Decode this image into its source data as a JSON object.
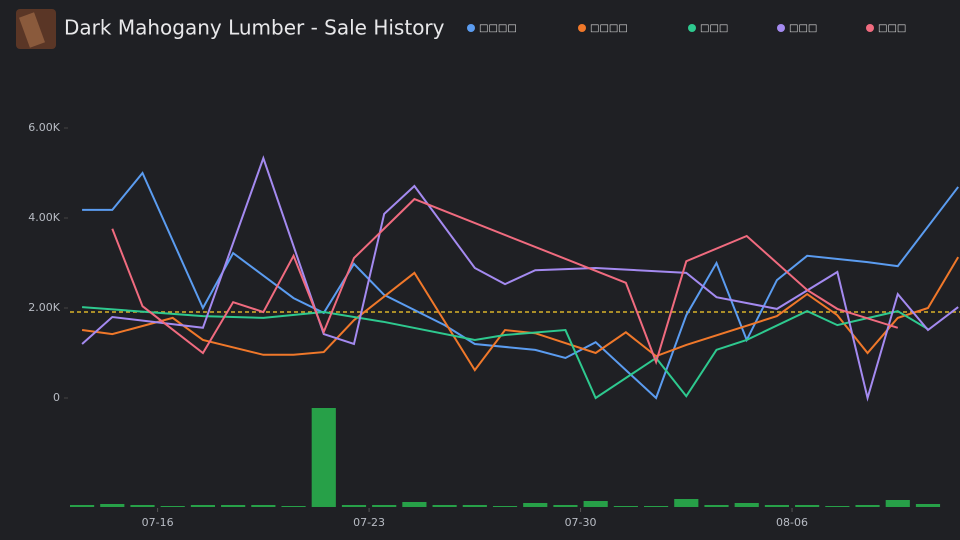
{
  "chart_data": [
    {
      "type": "line",
      "title": "Dark Mahogany Lumber - Sale History",
      "xlim": [
        -2.9,
        26.56
      ],
      "xticks": [
        {
          "value": 0,
          "label": "07-16"
        },
        {
          "value": 7,
          "label": "07-23"
        },
        {
          "value": 14,
          "label": "07-30"
        },
        {
          "value": 21,
          "label": "08-06"
        }
      ],
      "ylim": [
        0,
        6600
      ],
      "yticks": [
        {
          "value": 0,
          "label": "0"
        },
        {
          "value": 2000,
          "label": "2.00K"
        },
        {
          "value": 4000,
          "label": "4.00K"
        },
        {
          "value": 6000,
          "label": "6.00K"
        }
      ],
      "reference_line": 1910,
      "reference_color": "#d9b22a",
      "series": [
        {
          "name": "□□□□",
          "color": "#5b9cf0",
          "x": [
            -2.5,
            -1.5,
            -0.5,
            1.5,
            2.5,
            4.5,
            5.5,
            6.5,
            7.5,
            9.5,
            10.5,
            12.5,
            13.5,
            14.5,
            16.5,
            17.5,
            18.5,
            19.5,
            20.5,
            21.5,
            23.5,
            24.5,
            26.5
          ],
          "values": [
            4180,
            4180,
            5000,
            2000,
            3220,
            2220,
            1890,
            2980,
            2290,
            1620,
            1200,
            1070,
            890,
            1240,
            0,
            1840,
            3000,
            1290,
            2620,
            3160,
            3020,
            2930,
            4690
          ]
        },
        {
          "name": "□□□□",
          "color": "#f0782a",
          "x": [
            -2.5,
            -1.5,
            0.5,
            1.5,
            3.5,
            4.5,
            5.5,
            6.5,
            8.5,
            10.5,
            11.5,
            12.5,
            14.5,
            15.5,
            16.5,
            17.5,
            20.5,
            21.5,
            22.5,
            23.5,
            24.5,
            25.5,
            26.5
          ],
          "values": [
            1510,
            1420,
            1780,
            1290,
            960,
            960,
            1020,
            1730,
            2780,
            620,
            1510,
            1440,
            1000,
            1460,
            930,
            1180,
            1820,
            2310,
            1840,
            1000,
            1780,
            2000,
            3130
          ]
        },
        {
          "name": "□□□",
          "color": "#2ec98f",
          "x": [
            -2.5,
            1.5,
            3.5,
            5.5,
            7.5,
            10.5,
            11.5,
            13.5,
            14.5,
            16.5,
            17.5,
            18.5,
            19.5,
            21.5,
            22.5,
            24.5,
            25.5
          ],
          "values": [
            2020,
            1820,
            1780,
            1910,
            1690,
            1290,
            1400,
            1510,
            0,
            890,
            40,
            1070,
            1290,
            1930,
            1620,
            1930,
            1530
          ]
        },
        {
          "name": "□□□",
          "color": "#a48af0",
          "x": [
            -2.5,
            -1.5,
            1.5,
            3.5,
            5.5,
            6.5,
            7.5,
            8.5,
            10.5,
            11.5,
            12.5,
            14.5,
            17.5,
            18.5,
            20.5,
            22.5,
            23.5,
            24.5,
            25.5,
            26.5
          ],
          "values": [
            1200,
            1800,
            1560,
            5330,
            1420,
            1200,
            4090,
            4710,
            2890,
            2530,
            2840,
            2890,
            2780,
            2240,
            1980,
            2800,
            0,
            2310,
            1510,
            2020
          ]
        },
        {
          "name": "□□□",
          "color": "#f06b7f",
          "x": [
            -1.5,
            -0.5,
            1.5,
            2.5,
            3.5,
            4.5,
            5.5,
            6.5,
            8.5,
            15.5,
            16.5,
            17.5,
            19.5,
            21.5,
            22.5,
            24.5
          ],
          "values": [
            3760,
            2040,
            1000,
            2130,
            1910,
            3160,
            1470,
            3110,
            4420,
            2560,
            800,
            3040,
            3600,
            2400,
            1980,
            1560
          ]
        }
      ]
    },
    {
      "type": "bar",
      "color": "#27a048",
      "xlim": [
        -2.9,
        26.56
      ],
      "ylim": [
        0,
        100
      ],
      "x": [
        -2.5,
        -1.5,
        -0.5,
        0.5,
        1.5,
        2.5,
        3.5,
        4.5,
        5.5,
        6.5,
        7.5,
        8.5,
        9.5,
        10.5,
        11.5,
        12.5,
        13.5,
        14.5,
        15.5,
        16.5,
        17.5,
        18.5,
        19.5,
        20.5,
        21.5,
        22.5,
        23.5,
        24.5,
        25.5
      ],
      "values": [
        2,
        3,
        2,
        1,
        2,
        2,
        2,
        1,
        99,
        2,
        2,
        5,
        2,
        2,
        1,
        4,
        2,
        6,
        1,
        1,
        8,
        2,
        4,
        2,
        2,
        1,
        2,
        7,
        3
      ]
    }
  ]
}
